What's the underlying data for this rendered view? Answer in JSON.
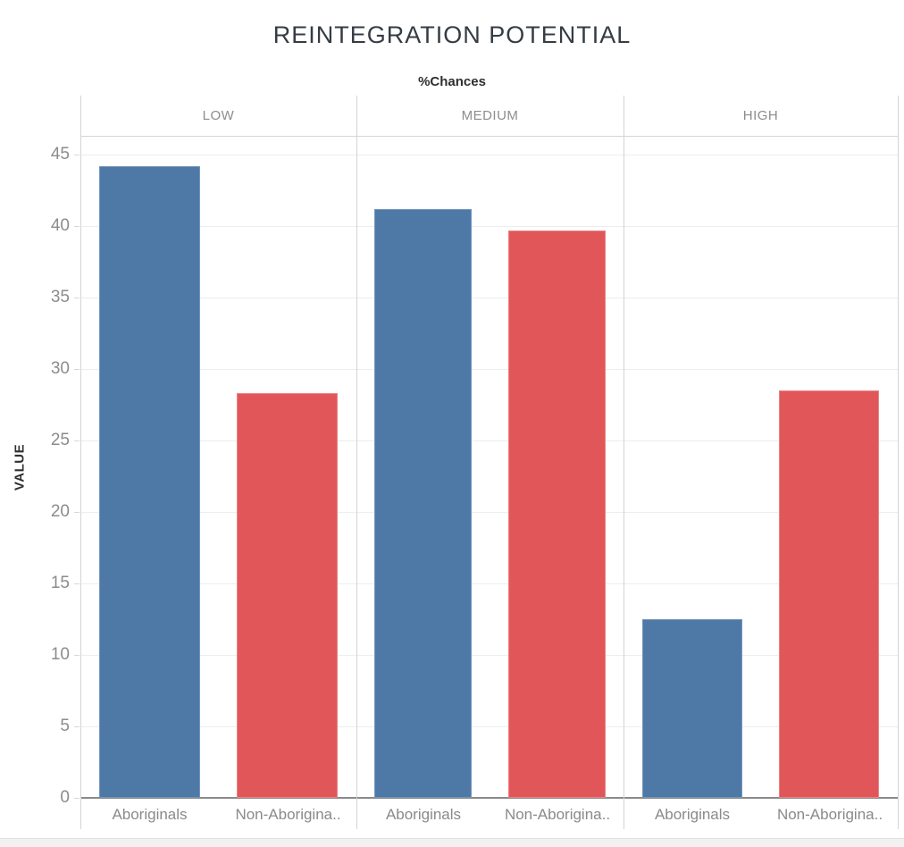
{
  "chart_data": {
    "type": "bar",
    "title": "REINTEGRATION POTENTIAL",
    "col_header": "%Chances",
    "ylabel": "VALUE",
    "yticks": [
      0,
      5,
      10,
      15,
      20,
      25,
      30,
      35,
      40,
      45
    ],
    "ylim": [
      0,
      46.3
    ],
    "grid": true,
    "legend_position": "none",
    "panels": [
      {
        "label": "LOW",
        "values": [
          44.2,
          28.3
        ]
      },
      {
        "label": "MEDIUM",
        "values": [
          41.2,
          39.7
        ]
      },
      {
        "label": "HIGH",
        "values": [
          12.5,
          28.5
        ]
      }
    ],
    "series": [
      {
        "name": "Aboriginals",
        "tick_label": "Aboriginals",
        "color": "#4e79a7",
        "border": "#7495bb"
      },
      {
        "name": "Non-Aboriginals",
        "tick_label": "Non-Aborigina..",
        "color": "#e15759",
        "border": "#ea8284"
      }
    ]
  },
  "colors": {
    "grid": "#ededed",
    "frame": "#d4d4d4",
    "axis_line": "#8a8a8a",
    "tick_text": "#8c8c8c",
    "header_text": "#8d8d8d",
    "title_text": "#363c44",
    "strip_bg": "#f1f1f1",
    "background": "#ffffff"
  }
}
